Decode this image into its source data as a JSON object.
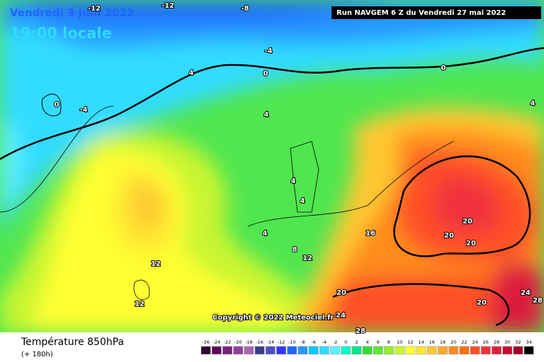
{
  "header": {
    "date": "Vendredi 3 juin 2022",
    "time": "19:00 locale",
    "run": "Run NAVGEM 6 Z du Vendredi 27 mai 2022"
  },
  "map": {
    "contour_labels": [
      "-12",
      "-12",
      "-8",
      "-4",
      "0",
      "4",
      "0",
      "-4",
      "0",
      "4",
      "4",
      "4",
      "4",
      "4",
      "16",
      "8",
      "12",
      "12",
      "12",
      "20",
      "20",
      "20",
      "20",
      "24",
      "28",
      "24",
      "20",
      "28"
    ]
  },
  "copyright": "Copyright © 2022 Meteociel.fr",
  "legend": {
    "title": "Température 850hPa",
    "subtitle": "(+ 180h)",
    "labels": [
      -26,
      -24,
      -22,
      -20,
      -18,
      -16,
      -14,
      -12,
      -10,
      -8,
      -6,
      -4,
      -2,
      0,
      2,
      4,
      6,
      8,
      10,
      12,
      14,
      16,
      18,
      20,
      22,
      24,
      26,
      28,
      30,
      32,
      34
    ],
    "colors": [
      "#330033",
      "#5c0a5c",
      "#7a1f80",
      "#8f3d99",
      "#a866b3",
      "#3c3c8c",
      "#4d4dbf",
      "#3333ff",
      "#1e64ff",
      "#2896ff",
      "#00c8ff",
      "#30dcff",
      "#60f0ff",
      "#00ffc8",
      "#00e68c",
      "#32dc32",
      "#64e632",
      "#96f032",
      "#c8f532",
      "#ffff32",
      "#ffe632",
      "#ffc832",
      "#ffaa28",
      "#ff8c1e",
      "#ff6e14",
      "#ff5028",
      "#f0323c",
      "#dc1e3c",
      "#c80a32",
      "#a00028",
      "#000000"
    ]
  }
}
